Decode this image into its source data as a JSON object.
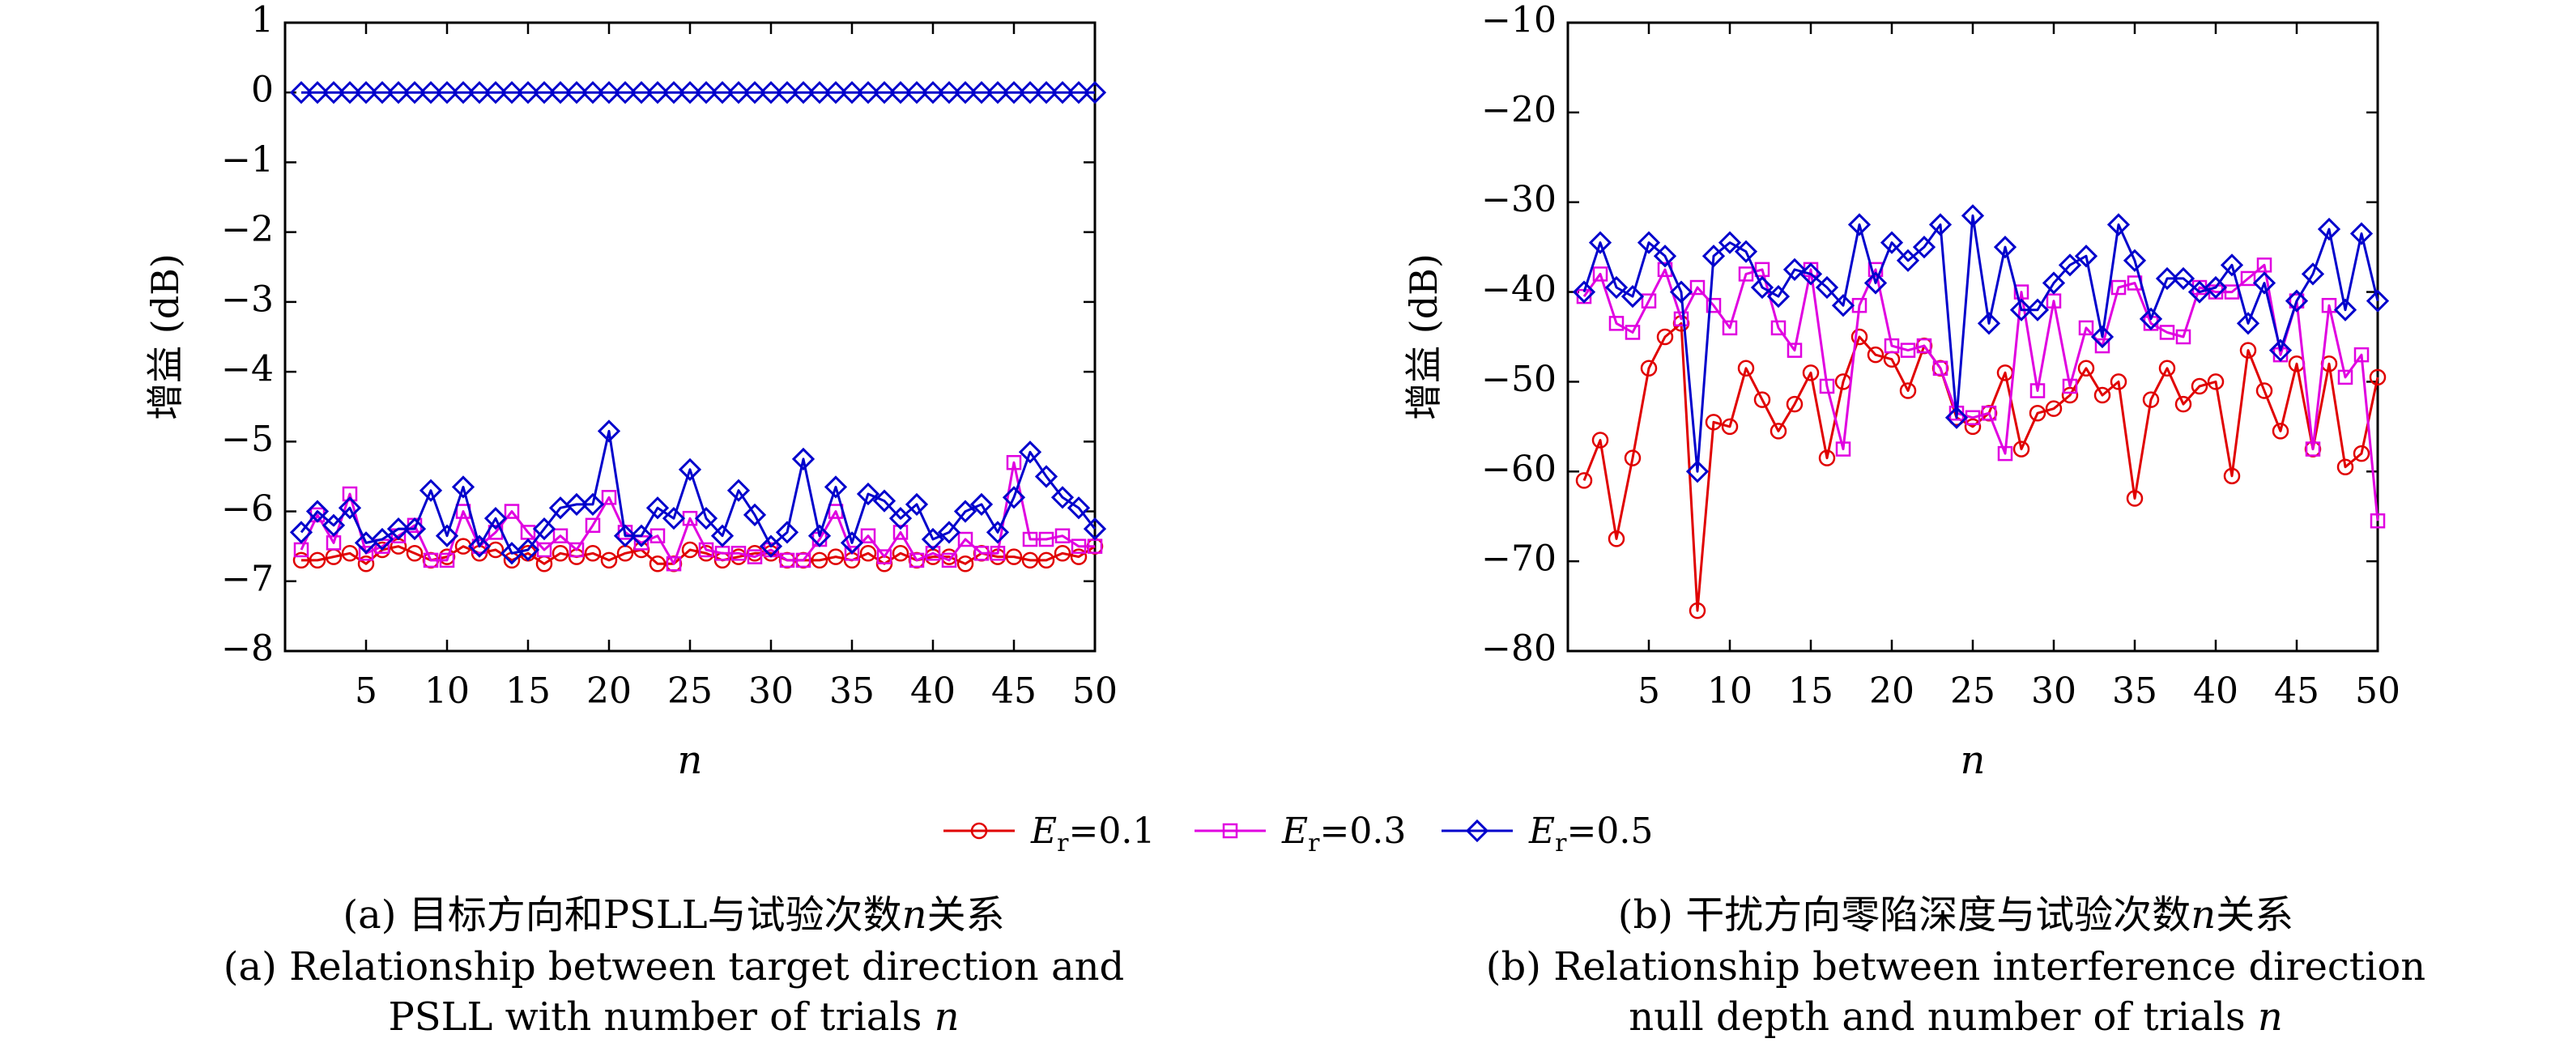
{
  "chart_data": [
    {
      "type": "line",
      "panel": "a",
      "ylabel": "增益 (dB)",
      "xlabel": "n",
      "xlim": [
        0,
        50
      ],
      "ylim": [
        -8,
        1
      ],
      "xticks": [
        5,
        10,
        15,
        20,
        25,
        30,
        35,
        40,
        45,
        50
      ],
      "yticks": [
        1,
        0,
        -1,
        -2,
        -3,
        -4,
        -5,
        -6,
        -7,
        -8
      ],
      "grid": false,
      "x": [
        1,
        2,
        3,
        4,
        5,
        6,
        7,
        8,
        9,
        10,
        11,
        12,
        13,
        14,
        15,
        16,
        17,
        18,
        19,
        20,
        21,
        22,
        23,
        24,
        25,
        26,
        27,
        28,
        29,
        30,
        31,
        32,
        33,
        34,
        35,
        36,
        37,
        38,
        39,
        40,
        41,
        42,
        43,
        44,
        45,
        46,
        47,
        48,
        49,
        50
      ],
      "series": [
        {
          "name": "E_r=0.1",
          "color": "#e00000",
          "marker": "circle",
          "values": [
            -6.7,
            -6.7,
            -6.65,
            -6.6,
            -6.75,
            -6.55,
            -6.5,
            -6.6,
            -6.7,
            -6.65,
            -6.5,
            -6.6,
            -6.55,
            -6.7,
            -6.6,
            -6.75,
            -6.6,
            -6.65,
            -6.6,
            -6.7,
            -6.6,
            -6.55,
            -6.75,
            -6.75,
            -6.55,
            -6.6,
            -6.7,
            -6.65,
            -6.6,
            -6.6,
            -6.7,
            -6.7,
            -6.7,
            -6.65,
            -6.7,
            -6.6,
            -6.75,
            -6.6,
            -6.7,
            -6.65,
            -6.65,
            -6.75,
            -6.6,
            -6.65,
            -6.65,
            -6.7,
            -6.7,
            -6.6,
            -6.65,
            -6.5
          ]
        },
        {
          "name": "E_r=0.3",
          "color": "#e000e0",
          "marker": "square",
          "values": [
            -6.55,
            -6.05,
            -6.45,
            -5.75,
            -6.6,
            -6.5,
            -6.35,
            -6.2,
            -6.7,
            -6.7,
            -6.0,
            -6.5,
            -6.3,
            -6.0,
            -6.3,
            -6.55,
            -6.35,
            -6.55,
            -6.2,
            -5.8,
            -6.3,
            -6.45,
            -6.35,
            -6.75,
            -6.1,
            -6.55,
            -6.6,
            -6.6,
            -6.65,
            -6.55,
            -6.7,
            -6.7,
            -6.4,
            -6.0,
            -6.6,
            -6.35,
            -6.65,
            -6.3,
            -6.7,
            -6.6,
            -6.7,
            -6.4,
            -6.6,
            -6.6,
            -5.3,
            -6.4,
            -6.4,
            -6.35,
            -6.5,
            -6.5
          ]
        },
        {
          "name": "E_r=0.5",
          "color": "#0000cc",
          "marker": "diamond",
          "values": [
            -6.3,
            -6.0,
            -6.2,
            -5.95,
            -6.45,
            -6.4,
            -6.25,
            -6.25,
            -5.7,
            -6.35,
            -5.65,
            -6.5,
            -6.1,
            -6.6,
            -6.55,
            -6.25,
            -5.95,
            -5.9,
            -5.9,
            -4.85,
            -6.35,
            -6.35,
            -5.95,
            -6.1,
            -5.4,
            -6.1,
            -6.35,
            -5.7,
            -6.05,
            -6.5,
            -6.3,
            -5.25,
            -6.35,
            -5.65,
            -6.45,
            -5.75,
            -5.85,
            -6.1,
            -5.9,
            -6.4,
            -6.3,
            -6.0,
            -5.9,
            -6.3,
            -5.8,
            -5.15,
            -5.5,
            -5.8,
            -5.95,
            -6.25
          ]
        },
        {
          "name": "",
          "color": "#0000cc",
          "marker": "diamond",
          "values": [
            0,
            0,
            0,
            0,
            0,
            0,
            0,
            0,
            0,
            0,
            0,
            0,
            0,
            0,
            0,
            0,
            0,
            0,
            0,
            0,
            0,
            0,
            0,
            0,
            0,
            0,
            0,
            0,
            0,
            0,
            0,
            0,
            0,
            0,
            0,
            0,
            0,
            0,
            0,
            0,
            0,
            0,
            0,
            0,
            0,
            0,
            0,
            0,
            0,
            0
          ]
        }
      ]
    },
    {
      "type": "line",
      "panel": "b",
      "ylabel": "增益 (dB)",
      "xlabel": "n",
      "xlim": [
        0,
        50
      ],
      "ylim": [
        -80,
        -10
      ],
      "xticks": [
        5,
        10,
        15,
        20,
        25,
        30,
        35,
        40,
        45,
        50
      ],
      "yticks": [
        -10,
        -20,
        -30,
        -40,
        -50,
        -60,
        -70,
        -80
      ],
      "grid": false,
      "x": [
        1,
        2,
        3,
        4,
        5,
        6,
        7,
        8,
        9,
        10,
        11,
        12,
        13,
        14,
        15,
        16,
        17,
        18,
        19,
        20,
        21,
        22,
        23,
        24,
        25,
        26,
        27,
        28,
        29,
        30,
        31,
        32,
        33,
        34,
        35,
        36,
        37,
        38,
        39,
        40,
        41,
        42,
        43,
        44,
        45,
        46,
        47,
        48,
        49,
        50
      ],
      "series": [
        {
          "name": "E_r=0.1",
          "color": "#e00000",
          "marker": "circle",
          "values": [
            -61,
            -56.5,
            -67.5,
            -58.5,
            -48.5,
            -45,
            -43.5,
            -75.5,
            -54.5,
            -55,
            -48.5,
            -52,
            -55.5,
            -52.5,
            -49,
            -58.5,
            -50,
            -45,
            -47,
            -47.5,
            -51,
            -46,
            -48.5,
            -54,
            -55,
            -53.5,
            -49,
            -57.5,
            -53.5,
            -53,
            -51.5,
            -48.5,
            -51.5,
            -50,
            -63,
            -52,
            -48.5,
            -52.5,
            -50.5,
            -50,
            -60.5,
            -46.5,
            -51,
            -55.5,
            -48,
            -57.5,
            -48,
            -59.5,
            -58,
            -49.5
          ]
        },
        {
          "name": "E_r=0.3",
          "color": "#e000e0",
          "marker": "square",
          "values": [
            -40.5,
            -38,
            -43.5,
            -44.5,
            -41,
            -37.5,
            -43,
            -39.5,
            -41.5,
            -44,
            -38,
            -37.5,
            -44,
            -46.5,
            -37.5,
            -50.5,
            -57.5,
            -41.5,
            -37.5,
            -46,
            -46.5,
            -46,
            -48.5,
            -53.5,
            -54,
            -53.5,
            -58,
            -40,
            -51,
            -41,
            -50.5,
            -44,
            -46,
            -39.5,
            -39,
            -43.5,
            -44.5,
            -45,
            -39.5,
            -40,
            -40,
            -38.5,
            -37,
            -47,
            -41,
            -57.5,
            -41.5,
            -49.5,
            -47,
            -65.5
          ]
        },
        {
          "name": "E_r=0.5",
          "color": "#0000cc",
          "marker": "diamond",
          "values": [
            -40,
            -34.5,
            -39.5,
            -40.5,
            -34.5,
            -36,
            -40,
            -60,
            -36,
            -34.5,
            -35.5,
            -39.5,
            -40.5,
            -37.5,
            -38,
            -39.5,
            -41.5,
            -32.5,
            -39,
            -34.5,
            -36.5,
            -35,
            -32.5,
            -54,
            -31.5,
            -43.5,
            -35,
            -42,
            -42,
            -39,
            -37,
            -36,
            -45,
            -32.5,
            -36.5,
            -43,
            -38.5,
            -38.5,
            -40,
            -39.5,
            -37,
            -43.5,
            -39,
            -46.5,
            -41,
            -38,
            -33,
            -42,
            -33.5,
            -41
          ]
        }
      ]
    }
  ],
  "legend": {
    "items": [
      {
        "label": "=0.1",
        "color": "#e00000",
        "marker": "circle"
      },
      {
        "label": "=0.3",
        "color": "#e000e0",
        "marker": "square"
      },
      {
        "label": "=0.5",
        "color": "#0000cc",
        "marker": "diamond"
      }
    ],
    "symbol_main": "E",
    "symbol_sub": "r"
  },
  "captions": {
    "a": {
      "cn_prefix": "(a) 目标方向和PSLL与试验次数",
      "cn_var": "n",
      "cn_suffix": "关系",
      "en_line1": "(a) Relationship between target direction and",
      "en_line2_prefix": "PSLL with number of trials ",
      "en_var": "n"
    },
    "b": {
      "cn_prefix": "(b) 干扰方向零陷深度与试验次数",
      "cn_var": "n",
      "cn_suffix": "关系",
      "en_line1": "(b) Relationship between interference direction",
      "en_line2_prefix": "null depth and number of trials ",
      "en_var": "n"
    }
  }
}
